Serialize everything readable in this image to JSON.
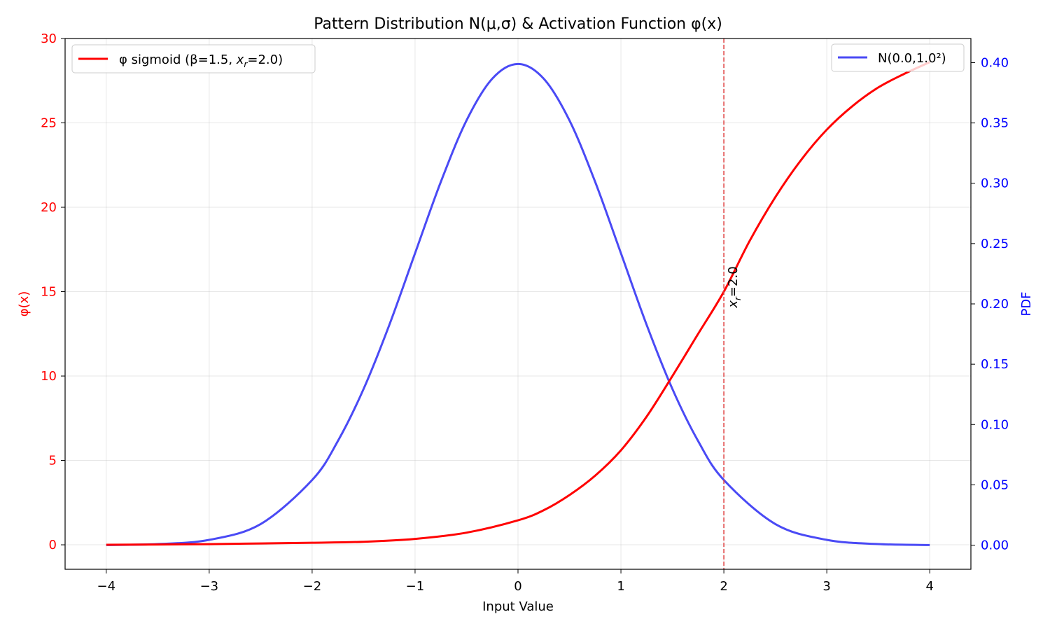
{
  "chart_data": {
    "type": "line",
    "title": "Pattern Distribution N(μ,σ) & Activation Function φ(x)",
    "xlabel": "Input Value",
    "ylabel_left": "φ(x)",
    "ylabel_right": "PDF",
    "xlim": [
      -4.4,
      4.4
    ],
    "ylim_left": [
      -1.45,
      30
    ],
    "ylim_right": [
      -0.02,
      0.42
    ],
    "x_ticks": [
      -4,
      -3,
      -2,
      -1,
      0,
      1,
      2,
      3,
      4
    ],
    "x_tick_labels": [
      "−4",
      "−3",
      "−2",
      "−1",
      "0",
      "1",
      "2",
      "3",
      "4"
    ],
    "y_left_ticks": [
      0,
      5,
      10,
      15,
      20,
      25,
      30
    ],
    "y_left_tick_labels": [
      "0",
      "5",
      "10",
      "15",
      "20",
      "25",
      "30"
    ],
    "y_right_ticks": [
      0.0,
      0.05,
      0.1,
      0.15,
      0.2,
      0.25,
      0.3,
      0.35,
      0.4
    ],
    "y_right_tick_labels": [
      "0.00",
      "0.05",
      "0.10",
      "0.15",
      "0.20",
      "0.25",
      "0.30",
      "0.35",
      "0.40"
    ],
    "grid": true,
    "colors": {
      "sigmoid": "#ff0000",
      "normal": "#4a4af5",
      "left_axis": "#ff0000",
      "right_axis": "#0000ff",
      "vline": "#e04040"
    },
    "series": [
      {
        "name": "φ sigmoid (β=1.5, xr=2.0)",
        "legend_prefix": "φ sigmoid (β=1.5, ",
        "legend_sub_base": "x",
        "legend_sub": "r",
        "legend_suffix": "=2.0)",
        "axis": "left",
        "x": [
          -4,
          -3.5,
          -3,
          -2.5,
          -2,
          -1.5,
          -1,
          -0.5,
          0,
          0.25,
          0.5,
          0.75,
          1,
          1.25,
          1.5,
          1.75,
          2,
          2.25,
          2.5,
          2.75,
          3,
          3.25,
          3.5,
          3.75,
          4
        ],
        "y": [
          0.0,
          0.02,
          0.04,
          0.08,
          0.12,
          0.18,
          0.35,
          0.72,
          1.45,
          2.05,
          2.95,
          4.1,
          5.6,
          7.6,
          10.0,
          12.5,
          15.0,
          18.0,
          20.6,
          22.8,
          24.6,
          26.0,
          27.1,
          27.9,
          28.6
        ]
      },
      {
        "name": "N(0.0,1.0²)",
        "axis": "right",
        "x": [
          -4,
          -3.5,
          -3,
          -2.5,
          -2,
          -1.75,
          -1.5,
          -1.25,
          -1,
          -0.75,
          -0.5,
          -0.25,
          0,
          0.25,
          0.5,
          0.75,
          1,
          1.25,
          1.5,
          1.75,
          2,
          2.5,
          3,
          3.5,
          4
        ],
        "y": [
          0.0001,
          0.0009,
          0.0044,
          0.0175,
          0.054,
          0.0863,
          0.1295,
          0.1826,
          0.242,
          0.3011,
          0.3521,
          0.3867,
          0.3989,
          0.3867,
          0.3521,
          0.3011,
          0.242,
          0.1826,
          0.1295,
          0.0863,
          0.054,
          0.0175,
          0.0044,
          0.0009,
          0.0001
        ]
      }
    ],
    "vline": {
      "x": 2.0,
      "label_base": "x",
      "label_sub": "r",
      "label_suffix": "=2.0"
    },
    "legend_left_position": "upper-left",
    "legend_right_position": "upper-right"
  }
}
